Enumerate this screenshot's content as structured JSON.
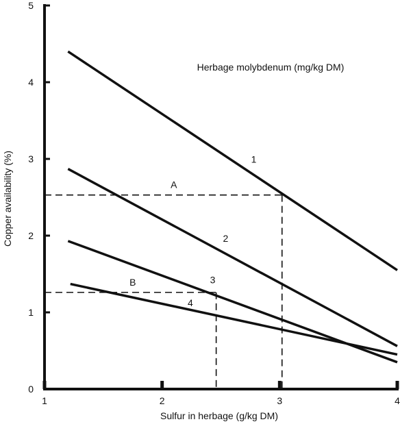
{
  "chart_data": {
    "type": "line",
    "title": "",
    "annotation": "Herbage molybdenum (mg/kg DM)",
    "xlabel": "Sulfur in herbage (g/kg DM)",
    "ylabel": "Copper availability (%)",
    "xlim": [
      1,
      4
    ],
    "ylim": [
      0,
      5
    ],
    "x_ticks": [
      1,
      2,
      3,
      4
    ],
    "x_tick_labels": [
      "1",
      "2",
      "3",
      "4"
    ],
    "y_ticks": [
      0,
      1,
      2,
      3,
      4,
      5
    ],
    "y_tick_labels": [
      "0",
      "1",
      "2",
      "3",
      "4",
      "5"
    ],
    "grid": false,
    "line_color": "#111111",
    "series": [
      {
        "name": "1",
        "x": [
          1.2,
          4.0
        ],
        "y": [
          4.4,
          1.55
        ]
      },
      {
        "name": "2",
        "x": [
          1.2,
          4.0
        ],
        "y": [
          2.87,
          0.56
        ]
      },
      {
        "name": "3",
        "x": [
          1.2,
          4.0
        ],
        "y": [
          1.93,
          0.35
        ]
      },
      {
        "name": "4",
        "x": [
          1.22,
          4.0
        ],
        "y": [
          1.37,
          0.45
        ]
      }
    ],
    "series_label_positions": [
      {
        "text": "1",
        "x": 2.78,
        "y": 2.95
      },
      {
        "text": "2",
        "x": 2.54,
        "y": 1.92
      },
      {
        "text": "3",
        "x": 2.43,
        "y": 1.38
      },
      {
        "text": "4",
        "x": 2.24,
        "y": 1.08
      }
    ],
    "reference_lines": [
      {
        "name": "A",
        "x": 3.02,
        "y": 2.53,
        "label_x": 2.1,
        "label_y": 2.62
      },
      {
        "name": "B",
        "x": 2.46,
        "y": 1.26,
        "label_x": 1.75,
        "label_y": 1.35
      }
    ]
  }
}
